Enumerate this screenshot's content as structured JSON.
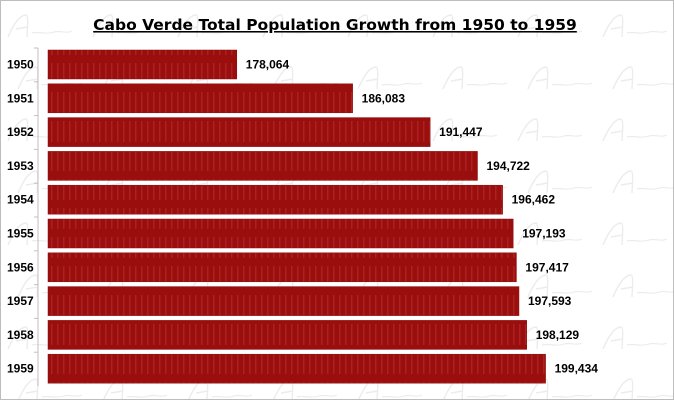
{
  "chart_data": {
    "type": "bar",
    "orientation": "horizontal",
    "title": "Cabo Verde Total Population Growth from 1950 to 1959",
    "categories": [
      "1950",
      "1951",
      "1952",
      "1953",
      "1954",
      "1955",
      "1956",
      "1957",
      "1958",
      "1959"
    ],
    "values": [
      178064,
      186083,
      191447,
      194722,
      196462,
      197193,
      197417,
      197593,
      198129,
      199434
    ],
    "data_labels": [
      "178,064",
      "186,083",
      "191,447",
      "194,722",
      "196,462",
      "197,193",
      "197,417",
      "197,593",
      "198,129",
      "199,434"
    ],
    "xlim": [
      165000,
      205000
    ],
    "grid": false,
    "legend": "none",
    "bar_color": "#9b0e0e",
    "watermark": "Afroluent"
  }
}
